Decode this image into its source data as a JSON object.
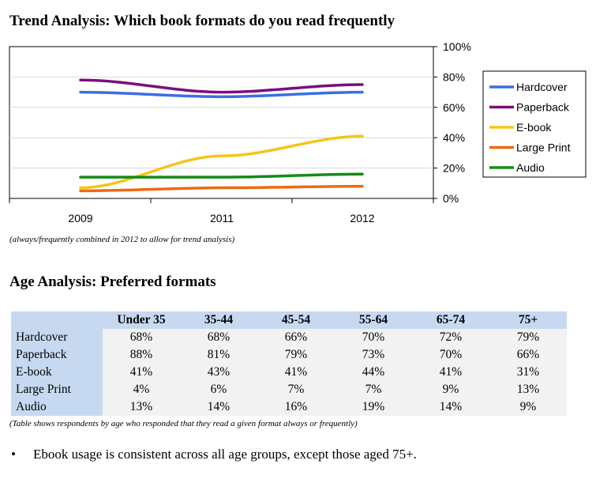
{
  "trend": {
    "title": "Trend Analysis: Which book formats do you read frequently",
    "note": "(always/frequently combined in 2012 to allow for trend analysis)"
  },
  "chart_data": {
    "type": "line",
    "x": [
      "2009",
      "2011",
      "2012"
    ],
    "ylim": [
      0,
      100
    ],
    "yticks": [
      "0%",
      "20%",
      "40%",
      "60%",
      "80%",
      "100%"
    ],
    "yticks_values": [
      0,
      20,
      40,
      60,
      80,
      100
    ],
    "grid": true,
    "legend_position": "right",
    "series": [
      {
        "name": "Hardcover",
        "color": "#3a6fe0",
        "values": [
          70,
          67,
          70
        ]
      },
      {
        "name": "Paperback",
        "color": "#7b0f7d",
        "values": [
          78,
          70,
          75
        ]
      },
      {
        "name": "E-book",
        "color": "#f5c518",
        "values": [
          7,
          28,
          41
        ]
      },
      {
        "name": "Large Print",
        "color": "#ee6a12",
        "values": [
          5,
          7,
          8
        ]
      },
      {
        "name": "Audio",
        "color": "#168a16",
        "values": [
          14,
          14,
          16
        ]
      }
    ]
  },
  "age": {
    "title": "Age Analysis: Preferred formats",
    "columns": [
      "Under 35",
      "35-44",
      "45-54",
      "55-64",
      "65-74",
      "75+"
    ],
    "rows": [
      {
        "label": "Hardcover",
        "values": [
          "68%",
          "68%",
          "66%",
          "70%",
          "72%",
          "79%"
        ]
      },
      {
        "label": "Paperback",
        "values": [
          "88%",
          "81%",
          "79%",
          "73%",
          "70%",
          "66%"
        ]
      },
      {
        "label": "E-book",
        "values": [
          "41%",
          "43%",
          "41%",
          "44%",
          "41%",
          "31%"
        ]
      },
      {
        "label": "Large Print",
        "values": [
          "4%",
          "6%",
          "7%",
          "7%",
          "9%",
          "13%"
        ]
      },
      {
        "label": "Audio",
        "values": [
          "13%",
          "14%",
          "16%",
          "19%",
          "14%",
          "9%"
        ]
      }
    ],
    "note": "(Table shows respondents by age who responded that they read a given format always or frequently)"
  },
  "bullet": {
    "symbol": "•",
    "text": "Ebook usage is consistent across all age groups, except those aged 75+."
  }
}
